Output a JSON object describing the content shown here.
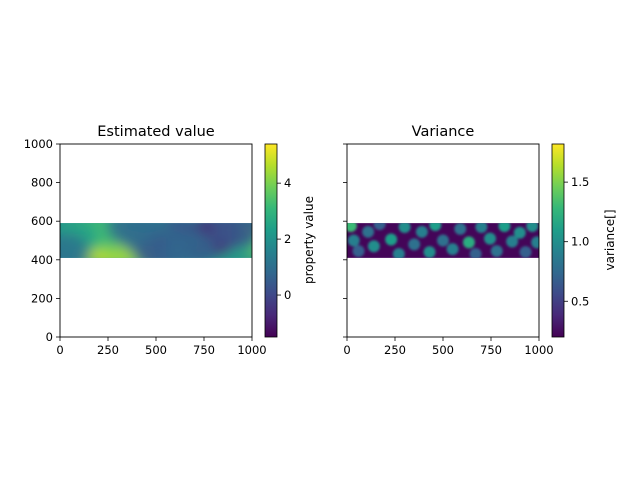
{
  "chart_data": [
    {
      "type": "heatmap",
      "title": "Estimated value",
      "xlabel": "",
      "ylabel": "",
      "xlim": [
        0,
        1000
      ],
      "ylim": [
        0,
        1000
      ],
      "x_ticks": [
        0,
        250,
        500,
        750,
        1000
      ],
      "y_ticks": [
        0,
        200,
        400,
        600,
        800,
        1000
      ],
      "data_extent": {
        "x": [
          0,
          1000
        ],
        "y": [
          410,
          590
        ]
      },
      "grid": false,
      "colormap": "viridis",
      "colorbar": {
        "label": "property value",
        "range": [
          -1.5,
          5.4
        ],
        "ticks": [
          0,
          2,
          4
        ]
      },
      "features": [
        {
          "x": 290,
          "y": 460,
          "value": 5.3
        },
        {
          "x": 200,
          "y": 470,
          "value": 4.6
        },
        {
          "x": 360,
          "y": 450,
          "value": 4.2
        },
        {
          "x": 130,
          "y": 540,
          "value": 3.4
        },
        {
          "x": 250,
          "y": 560,
          "value": 3.2
        },
        {
          "x": 60,
          "y": 520,
          "value": 2.4
        },
        {
          "x": 990,
          "y": 500,
          "value": 3.6
        },
        {
          "x": 860,
          "y": 470,
          "value": 2.3
        },
        {
          "x": 760,
          "y": 505,
          "value": -1.2
        },
        {
          "x": 820,
          "y": 530,
          "value": -0.6
        },
        {
          "x": 600,
          "y": 530,
          "value": 0.3
        },
        {
          "x": 450,
          "y": 520,
          "value": 1.2
        },
        {
          "x": 520,
          "y": 440,
          "value": 0.4
        },
        {
          "x": 680,
          "y": 450,
          "value": 0.8
        },
        {
          "x": 380,
          "y": 570,
          "value": 0.9
        },
        {
          "x": 20,
          "y": 440,
          "value": 1.1
        },
        {
          "x": 920,
          "y": 560,
          "value": 0.4
        }
      ]
    },
    {
      "type": "heatmap",
      "title": "Variance",
      "xlabel": "",
      "ylabel": "",
      "xlim": [
        0,
        1000
      ],
      "ylim": [
        0,
        1000
      ],
      "x_ticks": [
        0,
        250,
        500,
        750,
        1000
      ],
      "y_ticks": [
        0,
        200,
        400,
        600,
        800,
        1000
      ],
      "y_tick_labels_shown": false,
      "data_extent": {
        "x": [
          0,
          1000
        ],
        "y": [
          410,
          590
        ]
      },
      "grid": false,
      "colormap": "viridis",
      "colorbar": {
        "label": "variance[]",
        "range": [
          0.2,
          1.82
        ],
        "ticks": [
          0.5,
          1.0,
          1.5
        ]
      },
      "background_value": 0.22,
      "spots": [
        {
          "x": 20,
          "y": 575,
          "value": 1.3
        },
        {
          "x": 35,
          "y": 500,
          "value": 0.9
        },
        {
          "x": 60,
          "y": 445,
          "value": 0.7
        },
        {
          "x": 110,
          "y": 545,
          "value": 0.8
        },
        {
          "x": 140,
          "y": 470,
          "value": 1.0
        },
        {
          "x": 170,
          "y": 585,
          "value": 0.7
        },
        {
          "x": 230,
          "y": 505,
          "value": 1.1
        },
        {
          "x": 270,
          "y": 430,
          "value": 0.9
        },
        {
          "x": 300,
          "y": 570,
          "value": 1.0
        },
        {
          "x": 350,
          "y": 480,
          "value": 0.8
        },
        {
          "x": 390,
          "y": 545,
          "value": 0.9
        },
        {
          "x": 430,
          "y": 440,
          "value": 1.0
        },
        {
          "x": 460,
          "y": 580,
          "value": 1.1
        },
        {
          "x": 500,
          "y": 500,
          "value": 0.8
        },
        {
          "x": 550,
          "y": 455,
          "value": 0.9
        },
        {
          "x": 590,
          "y": 560,
          "value": 0.8
        },
        {
          "x": 635,
          "y": 490,
          "value": 1.2
        },
        {
          "x": 670,
          "y": 430,
          "value": 0.7
        },
        {
          "x": 700,
          "y": 570,
          "value": 0.9
        },
        {
          "x": 745,
          "y": 510,
          "value": 1.0
        },
        {
          "x": 780,
          "y": 445,
          "value": 0.8
        },
        {
          "x": 820,
          "y": 575,
          "value": 1.1
        },
        {
          "x": 860,
          "y": 495,
          "value": 0.9
        },
        {
          "x": 900,
          "y": 540,
          "value": 1.0
        },
        {
          "x": 930,
          "y": 440,
          "value": 0.7
        },
        {
          "x": 965,
          "y": 575,
          "value": 1.0
        },
        {
          "x": 990,
          "y": 490,
          "value": 0.9
        }
      ]
    }
  ]
}
